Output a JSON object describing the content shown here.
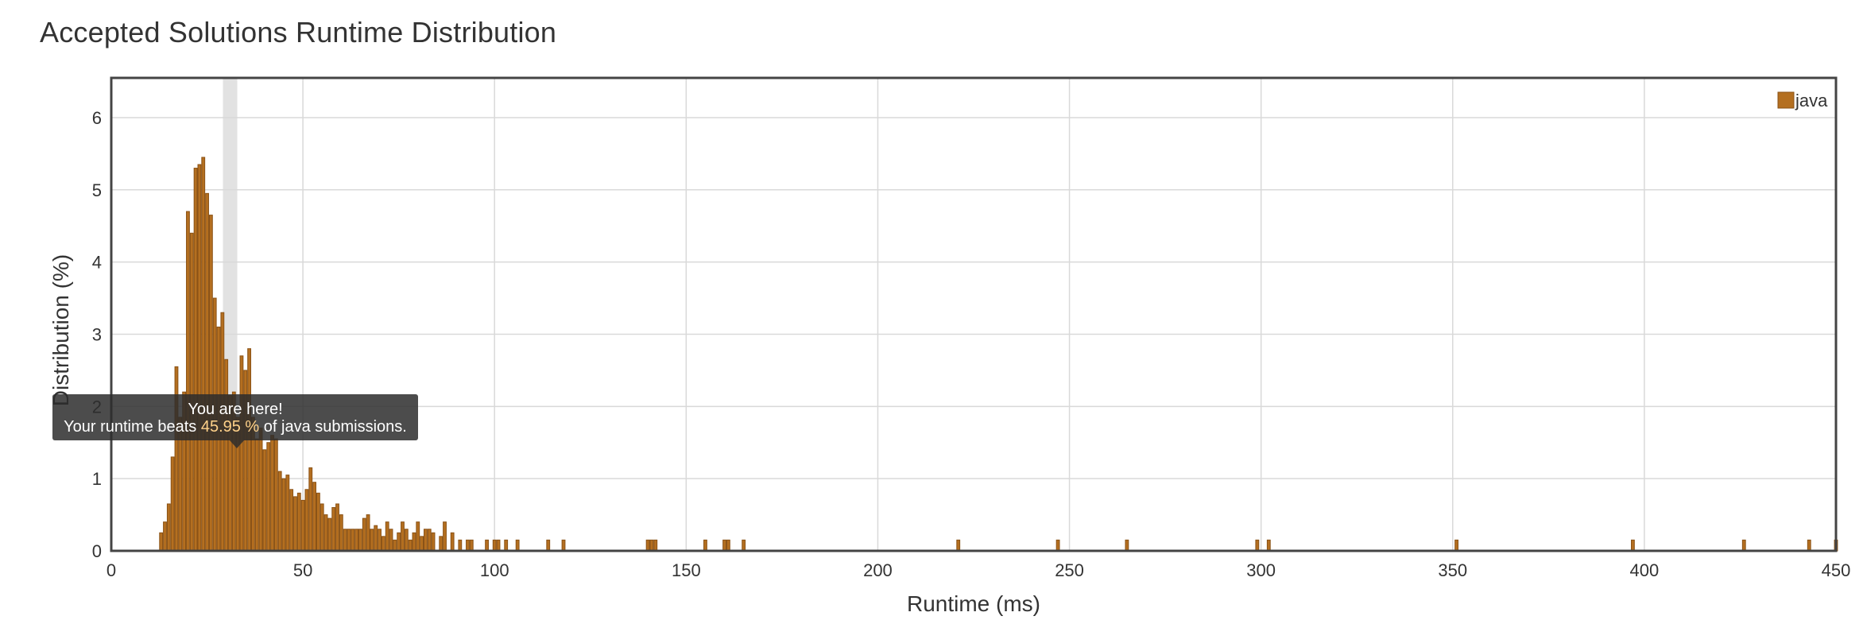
{
  "page": {
    "title": "Accepted Solutions Runtime Distribution"
  },
  "tooltip": {
    "line1": "You are here!",
    "line2_prefix": "Your runtime beats ",
    "line2_pct": "45.95 %",
    "line2_suffix": " of java submissions."
  },
  "colors": {
    "bar_fill": "#b46f20",
    "bar_stroke": "#8a5216",
    "highlight_band": "#d8d8d8",
    "grid": "#d9d9d9",
    "frame": "#444444"
  },
  "chart_data": {
    "type": "bar",
    "title": "Accepted Solutions Runtime Distribution",
    "xlabel": "Runtime (ms)",
    "ylabel": "Distribution (%)",
    "xlim": [
      0,
      450
    ],
    "ylim": [
      0,
      6.55
    ],
    "xticks": [
      0,
      50,
      100,
      150,
      200,
      250,
      300,
      350,
      400,
      450
    ],
    "yticks": [
      0,
      1,
      2,
      3,
      4,
      5,
      6
    ],
    "grid": true,
    "legend_position": "top-right",
    "highlight_x": 31,
    "series": [
      {
        "name": "java",
        "color": "#b46f20",
        "x": [
          13,
          14,
          15,
          16,
          17,
          18,
          19,
          20,
          21,
          22,
          23,
          24,
          25,
          26,
          27,
          28,
          29,
          30,
          31,
          32,
          33,
          34,
          35,
          36,
          37,
          38,
          39,
          40,
          41,
          42,
          43,
          44,
          45,
          46,
          47,
          48,
          49,
          50,
          51,
          52,
          53,
          54,
          55,
          56,
          57,
          58,
          59,
          60,
          61,
          62,
          63,
          64,
          65,
          66,
          67,
          68,
          69,
          70,
          71,
          72,
          73,
          74,
          75,
          76,
          77,
          78,
          79,
          80,
          81,
          82,
          83,
          84,
          86,
          87,
          89,
          91,
          93,
          94,
          98,
          100,
          101,
          103,
          106,
          114,
          118,
          140,
          141,
          142,
          155,
          160,
          161,
          165,
          221,
          247,
          265,
          299,
          302,
          351,
          397,
          426,
          443,
          450
        ],
        "values": [
          0.25,
          0.4,
          0.65,
          1.3,
          2.55,
          1.85,
          2.2,
          4.7,
          4.4,
          5.3,
          5.35,
          5.45,
          4.95,
          4.65,
          3.5,
          3.1,
          3.3,
          2.65,
          2.15,
          2.2,
          1.85,
          2.7,
          2.5,
          2.8,
          1.85,
          1.55,
          1.7,
          1.4,
          1.5,
          1.6,
          1.55,
          1.1,
          1.0,
          1.05,
          0.85,
          0.75,
          0.8,
          0.7,
          0.85,
          1.15,
          0.95,
          0.8,
          0.65,
          0.5,
          0.45,
          0.6,
          0.65,
          0.5,
          0.3,
          0.3,
          0.3,
          0.3,
          0.3,
          0.45,
          0.5,
          0.3,
          0.35,
          0.3,
          0.2,
          0.4,
          0.3,
          0.15,
          0.25,
          0.4,
          0.3,
          0.15,
          0.25,
          0.4,
          0.2,
          0.3,
          0.3,
          0.25,
          0.2,
          0.4,
          0.25,
          0.15,
          0.15,
          0.15,
          0.15,
          0.15,
          0.15,
          0.15,
          0.15,
          0.15,
          0.15,
          0.15,
          0.15,
          0.15,
          0.15,
          0.15,
          0.15,
          0.15,
          0.15,
          0.15,
          0.15,
          0.15,
          0.15,
          0.15,
          0.15,
          0.15,
          0.15,
          0.15
        ]
      }
    ]
  }
}
